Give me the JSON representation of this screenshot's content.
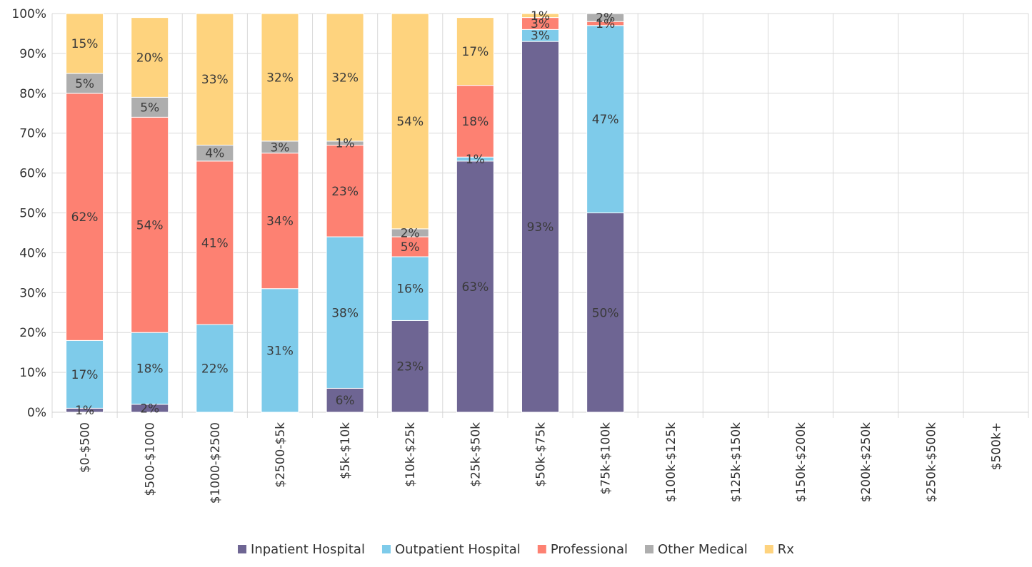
{
  "chart_data": {
    "type": "bar",
    "stacked": true,
    "percent": true,
    "ylim": [
      0,
      100
    ],
    "y_ticks": [
      "0%",
      "10%",
      "20%",
      "30%",
      "40%",
      "50%",
      "60%",
      "70%",
      "80%",
      "90%",
      "100%"
    ],
    "grid": true,
    "legend_position": "bottom",
    "categories": [
      "$0-$500",
      "$500-$1000",
      "$1000-$2500",
      "$2500-$5k",
      "$5k-$10k",
      "$10k-$25k",
      "$25k-$50k",
      "$50k-$75k",
      "$75k-$100k",
      "$100k-$125k",
      "$125k-$150k",
      "$150k-$200k",
      "$200k-$250k",
      "$250k-$500k",
      "$500k+"
    ],
    "series": [
      {
        "name": "Inpatient Hospital",
        "color": "#6e6593",
        "values": [
          1,
          2,
          0,
          0,
          6,
          23,
          63,
          93,
          50,
          null,
          null,
          null,
          null,
          null,
          null
        ]
      },
      {
        "name": "Outpatient Hospital",
        "color": "#7ecbea",
        "values": [
          17,
          18,
          22,
          31,
          38,
          16,
          1,
          3,
          47,
          null,
          null,
          null,
          null,
          null,
          null
        ]
      },
      {
        "name": "Professional",
        "color": "#fd8172",
        "values": [
          62,
          54,
          41,
          34,
          23,
          5,
          18,
          3,
          1,
          null,
          null,
          null,
          null,
          null,
          null
        ]
      },
      {
        "name": "Other Medical",
        "color": "#aeaeae",
        "values": [
          5,
          5,
          4,
          3,
          1,
          2,
          0,
          0,
          2,
          null,
          null,
          null,
          null,
          null,
          null
        ]
      },
      {
        "name": "Rx",
        "color": "#fed37e",
        "values": [
          15,
          20,
          33,
          32,
          32,
          54,
          17,
          1,
          0,
          null,
          null,
          null,
          null,
          null,
          null
        ]
      }
    ]
  }
}
